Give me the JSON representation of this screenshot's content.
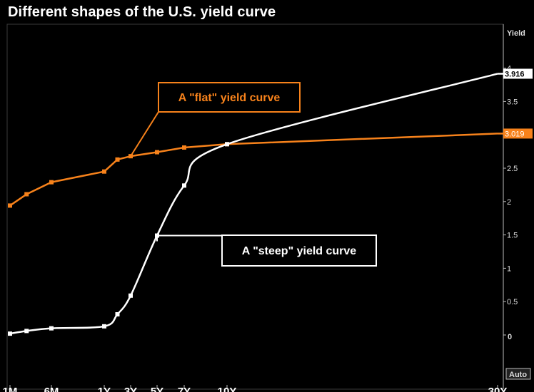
{
  "chart_data": {
    "type": "line",
    "title": "Different shapes of the U.S. yield curve",
    "ylabel": "Yield",
    "ylim": [
      -0.5,
      4.6
    ],
    "yticks": [
      "0",
      "0.5",
      "1",
      "1.5",
      "2",
      "2.5",
      "3",
      "3.5",
      "4"
    ],
    "yaxis_auto_label": "Auto",
    "x_tick_labels": [
      "1M",
      "6M",
      "1Y",
      "3Y",
      "5Y",
      "7Y",
      "10Y",
      "30Y"
    ],
    "x_tick_maturities_years": [
      0.083,
      0.5,
      1,
      3,
      5,
      7,
      10,
      30
    ],
    "grid": false,
    "series": [
      {
        "color": "#f7821b",
        "x_years": [
          0.083,
          0.25,
          0.5,
          1,
          2,
          3,
          5,
          7,
          10,
          30
        ],
        "values": [
          1.94,
          2.11,
          2.29,
          2.45,
          2.63,
          2.68,
          2.74,
          2.81,
          2.86,
          3.019
        ],
        "last_value_label": "3.019",
        "annotation": "A \"flat\" yield curve"
      },
      {
        "color": "#ffffff",
        "x_years": [
          0.083,
          0.25,
          0.5,
          1,
          2,
          3,
          5,
          7,
          10,
          30
        ],
        "values": [
          0.02,
          0.06,
          0.1,
          0.13,
          0.31,
          0.59,
          1.49,
          2.24,
          2.86,
          3.916
        ],
        "last_value_label": "3.916",
        "annotation": "A \"steep\" yield curve"
      }
    ]
  }
}
